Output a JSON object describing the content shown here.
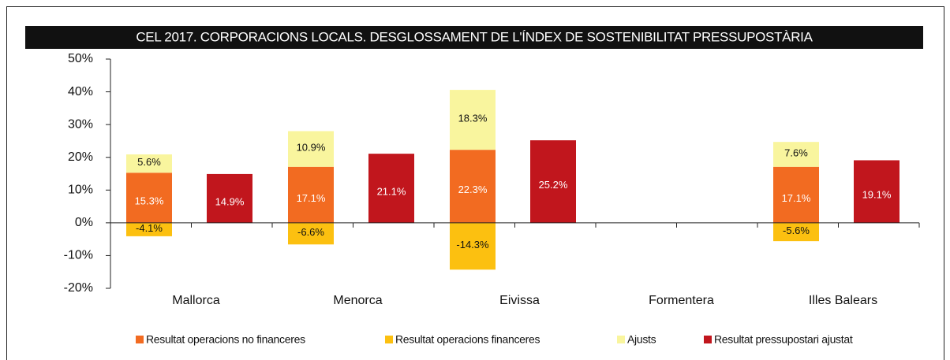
{
  "chart_data": {
    "type": "bar",
    "title": "CEL 2017. CORPORACIONS LOCALS. DESGLOSSAMENT DE L'ÍNDEX DE SOSTENIBILITAT PRESSUPOSTÀRIA",
    "categories": [
      "Mallorca",
      "Menorca",
      "Eivissa",
      "Formentera",
      "Illes Balears"
    ],
    "series": [
      {
        "name": "Resultat operacions no financeres",
        "color": "#f26b21",
        "values": [
          15.3,
          17.1,
          22.3,
          null,
          17.1
        ],
        "value_labels": [
          "15.3%",
          "17.1%",
          "22.3%",
          null,
          "17.1%"
        ]
      },
      {
        "name": "Resultat operacions financeres",
        "color": "#fcc010",
        "values": [
          -4.1,
          -6.6,
          -14.3,
          null,
          -5.6
        ],
        "value_labels": [
          "-4.1%",
          "-6.6%",
          "-14.3%",
          null,
          "-5.6%"
        ]
      },
      {
        "name": "Ajusts",
        "color": "#f9f59e",
        "values": [
          5.6,
          10.9,
          18.3,
          null,
          7.6
        ],
        "value_labels": [
          "5.6%",
          "10.9%",
          "18.3%",
          null,
          "7.6%"
        ]
      },
      {
        "name": "Resultat pressupostari ajustat",
        "color": "#c1161d",
        "values": [
          14.9,
          21.1,
          25.2,
          null,
          19.1
        ],
        "value_labels": [
          "14.9%",
          "21.1%",
          "25.2%",
          null,
          "19.1%"
        ]
      }
    ],
    "ylim": [
      -20,
      50
    ],
    "yticks": [
      {
        "value": -20,
        "label": "-20%"
      },
      {
        "value": -10,
        "label": "-10%"
      },
      {
        "value": 0,
        "label": "0%"
      },
      {
        "value": 10,
        "label": "10%"
      },
      {
        "value": 20,
        "label": "20%"
      },
      {
        "value": 30,
        "label": "30%"
      },
      {
        "value": 40,
        "label": "40%"
      },
      {
        "value": 50,
        "label": "50%"
      }
    ],
    "legend": "bottom"
  }
}
